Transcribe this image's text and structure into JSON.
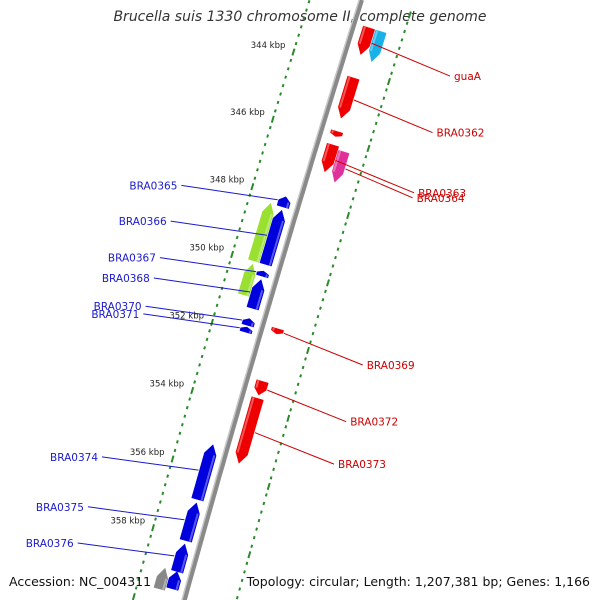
{
  "title": "Brucella suis 1330 chromosome II, complete genome",
  "footer": {
    "accession": "Accession: NC_004311",
    "summary": "Topology: circular; Length: 1,207,381 bp; Genes: 1,166"
  },
  "colors": {
    "backbone": "#8a8a8a",
    "ruler": "#2a8a2a",
    "reverse_gene": "#0000dd",
    "forward_gene": "#ee0000",
    "forward_label": "#cc0000",
    "reverse_label": "#1a1acc"
  },
  "ticks": [
    {
      "kbp": 344,
      "label": "344 kbp"
    },
    {
      "kbp": 346,
      "label": "346 kbp"
    },
    {
      "kbp": 348,
      "label": "348 kbp"
    },
    {
      "kbp": 350,
      "label": "350 kbp"
    },
    {
      "kbp": 352,
      "label": "352 kbp"
    },
    {
      "kbp": 354,
      "label": "354 kbp"
    },
    {
      "kbp": 356,
      "label": "356 kbp"
    },
    {
      "kbp": 358,
      "label": "358 kbp"
    }
  ],
  "genes": [
    {
      "name": "guaA",
      "strand": "+",
      "start_kbp": 342.7,
      "end_kbp": 343.5,
      "color": "#ee0000"
    },
    {
      "name": "",
      "strand": "+",
      "start_kbp": 342.7,
      "end_kbp": 343.6,
      "color": "#1ab0e8",
      "track": "outer"
    },
    {
      "name": "BRA0362",
      "strand": "+",
      "start_kbp": 344.2,
      "end_kbp": 345.4,
      "color": "#ee0000"
    },
    {
      "name": "",
      "strand": "+",
      "start_kbp": 345.8,
      "end_kbp": 345.95,
      "color": "#ee0000"
    },
    {
      "name": "BRA0363",
      "strand": "+",
      "start_kbp": 346.2,
      "end_kbp": 347.0,
      "color": "#ee0000"
    },
    {
      "name": "BRA0364",
      "strand": "+",
      "start_kbp": 346.3,
      "end_kbp": 347.2,
      "color": "#e0309a",
      "track": "outer"
    },
    {
      "name": "BRA0365",
      "strand": "-",
      "start_kbp": 348.0,
      "end_kbp": 348.3,
      "color": "#0000dd"
    },
    {
      "name": "BRA0366",
      "strand": "-",
      "start_kbp": 348.4,
      "end_kbp": 350.0,
      "color": "#0000dd"
    },
    {
      "name": "",
      "strand": "-",
      "start_kbp": 348.3,
      "end_kbp": 350.0,
      "color": "#99e030",
      "track": "inner"
    },
    {
      "name": "BRA0367",
      "strand": "-",
      "start_kbp": 350.2,
      "end_kbp": 350.35,
      "color": "#0000dd"
    },
    {
      "name": "BRA0368",
      "strand": "-",
      "start_kbp": 350.45,
      "end_kbp": 351.3,
      "color": "#0000dd"
    },
    {
      "name": "",
      "strand": "-",
      "start_kbp": 350.1,
      "end_kbp": 351.0,
      "color": "#99e030",
      "track": "inner"
    },
    {
      "name": "BRA0370",
      "strand": "-",
      "start_kbp": 351.6,
      "end_kbp": 351.8,
      "color": "#0000dd"
    },
    {
      "name": "BRA0371",
      "strand": "-",
      "start_kbp": 351.85,
      "end_kbp": 352.0,
      "color": "#0000dd"
    },
    {
      "name": "BRA0369",
      "strand": "+",
      "start_kbp": 351.65,
      "end_kbp": 351.8,
      "color": "#ee0000"
    },
    {
      "name": "BRA0372",
      "strand": "+",
      "start_kbp": 353.2,
      "end_kbp": 353.6,
      "color": "#ee0000"
    },
    {
      "name": "BRA0373",
      "strand": "+",
      "start_kbp": 353.7,
      "end_kbp": 355.6,
      "color": "#ee0000"
    },
    {
      "name": "BRA0374",
      "strand": "-",
      "start_kbp": 355.3,
      "end_kbp": 356.9,
      "color": "#0000dd"
    },
    {
      "name": "BRA0375",
      "strand": "-",
      "start_kbp": 357.0,
      "end_kbp": 358.1,
      "color": "#0000dd"
    },
    {
      "name": "BRA0376",
      "strand": "-",
      "start_kbp": 358.2,
      "end_kbp": 359.0,
      "color": "#0000dd"
    },
    {
      "name": "",
      "strand": "-",
      "start_kbp": 359.0,
      "end_kbp": 359.5,
      "color": "#0000dd"
    },
    {
      "name": "",
      "strand": "-",
      "start_kbp": 359.0,
      "end_kbp": 359.6,
      "color": "#888888",
      "track": "inner"
    }
  ]
}
